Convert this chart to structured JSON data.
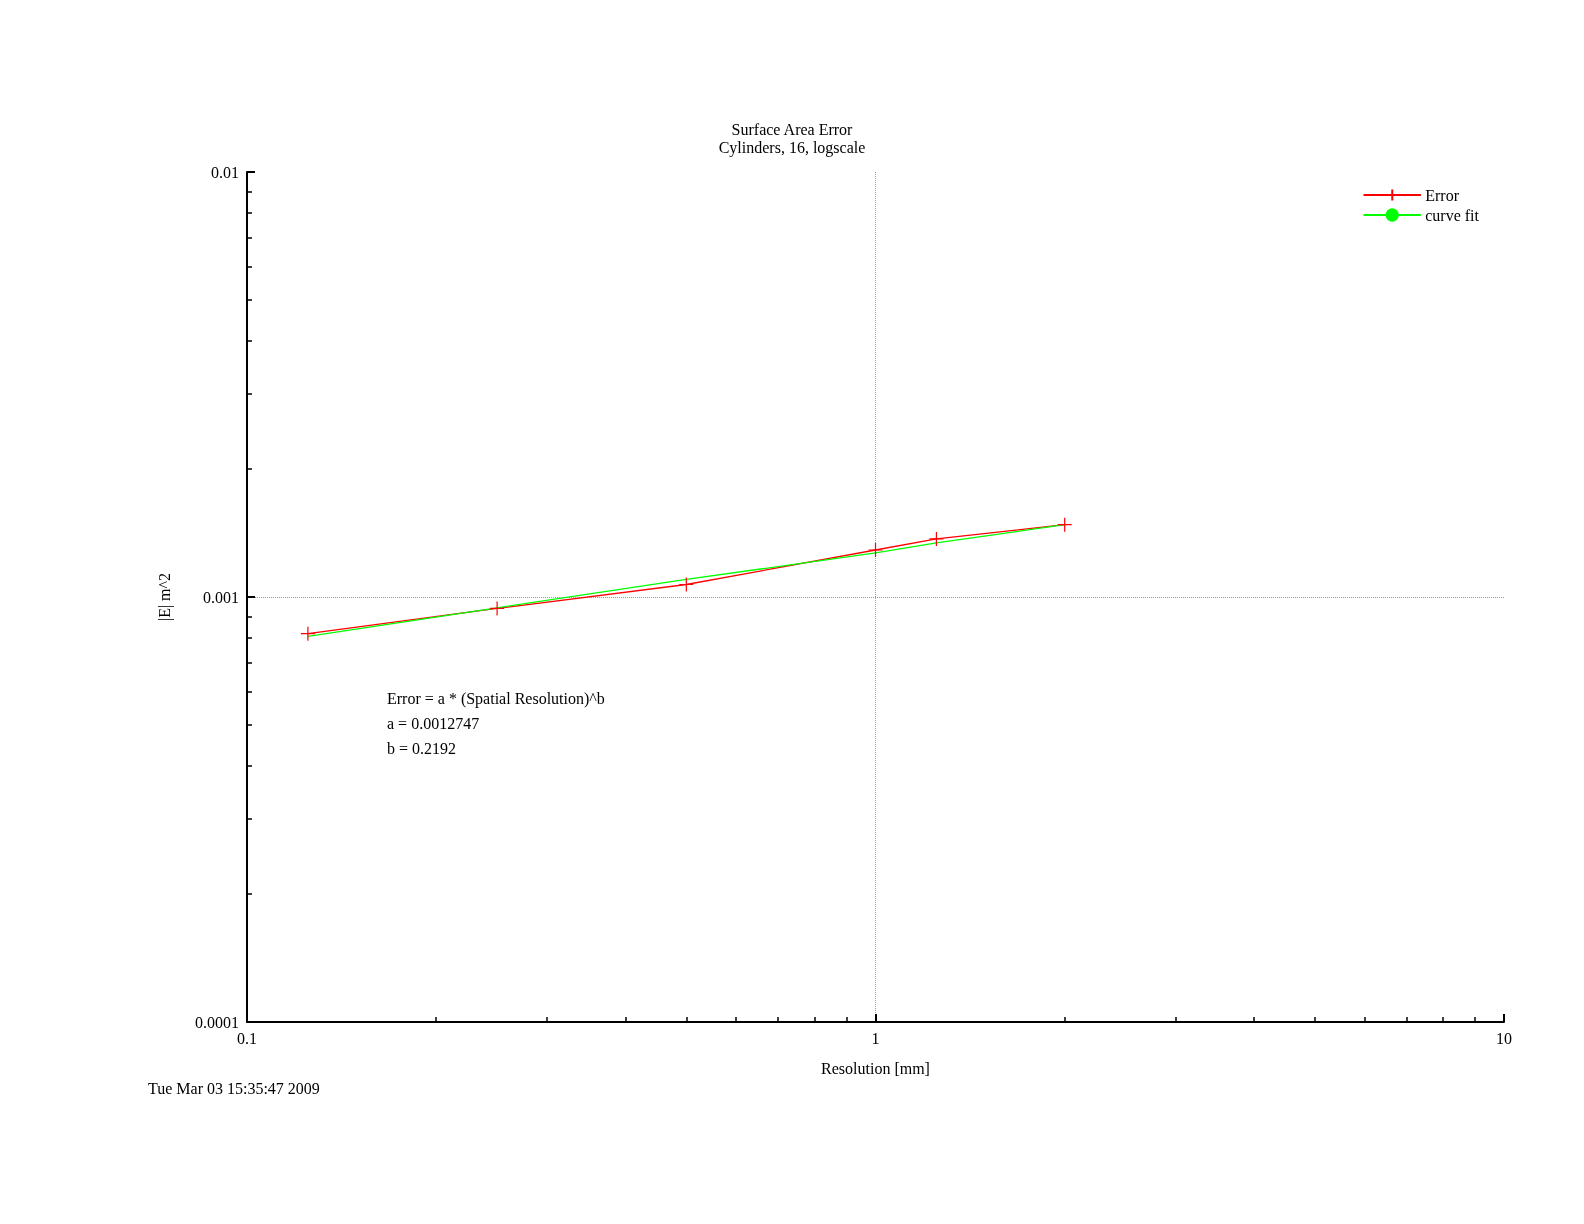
{
  "chart_data": {
    "type": "line",
    "title": "Surface Area Error",
    "subtitle": "Cylinders, 16, logscale",
    "xlabel": "Resolution [mm]",
    "ylabel": "|E| m^2",
    "x": [
      0.125,
      0.25,
      0.5,
      1,
      1.25,
      2
    ],
    "series": [
      {
        "name": "Error",
        "color": "#ff0000",
        "marker": "cross",
        "values": [
          0.00082,
          0.00094,
          0.00107,
          0.00129,
          0.00137,
          0.00148
        ]
      },
      {
        "name": "curve fit",
        "color": "#00ff00",
        "marker": "none",
        "x": [
          0.125,
          0.25,
          0.5,
          1,
          1.25,
          2
        ],
        "values": [
          0.000808,
          0.000943,
          0.0011,
          0.00127,
          0.00134,
          0.00148
        ]
      }
    ],
    "log": "xy",
    "xlim": [
      0.1,
      10
    ],
    "xticks": [
      0.1,
      1,
      10
    ],
    "ylim": [
      0.0001,
      0.01
    ],
    "yticks": [
      0.0001,
      0.001,
      0.01
    ],
    "grid": true,
    "legend": "top right",
    "line_style": "solid",
    "annotations": [
      "Error = a * (Spatial Resolution)^b",
      "a = 0.0012747",
      "b = 0.2192",
      "Tue Mar 03 15:35:47 2009"
    ]
  }
}
